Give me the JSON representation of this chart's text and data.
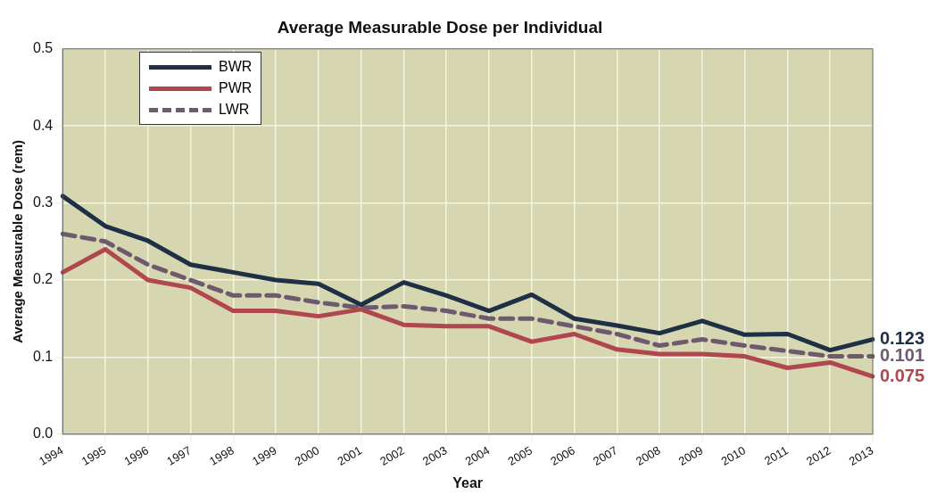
{
  "chart_data": {
    "type": "line",
    "title": "Average Measurable Dose per Individual",
    "xlabel": "Year",
    "ylabel": "Average Measurable Dose (rem)",
    "categories": [
      "1994",
      "1995",
      "1996",
      "1997",
      "1998",
      "1999",
      "2000",
      "2001",
      "2002",
      "2003",
      "2004",
      "2005",
      "2006",
      "2007",
      "2008",
      "2009",
      "2010",
      "2011",
      "2012",
      "2013"
    ],
    "series": [
      {
        "name": "BWR",
        "color": "#1f2f45",
        "values": [
          0.309,
          0.27,
          0.251,
          0.22,
          0.21,
          0.2,
          0.195,
          0.168,
          0.197,
          0.18,
          0.16,
          0.181,
          0.15,
          0.141,
          0.131,
          0.147,
          0.129,
          0.13,
          0.109,
          0.123
        ]
      },
      {
        "name": "PWR",
        "color": "#b0474e",
        "values": [
          0.21,
          0.24,
          0.2,
          0.19,
          0.16,
          0.16,
          0.153,
          0.162,
          0.142,
          0.14,
          0.14,
          0.12,
          0.13,
          0.11,
          0.104,
          0.104,
          0.101,
          0.086,
          0.093,
          0.075
        ]
      },
      {
        "name": "LWR",
        "color": "#6e5a6e",
        "line_style": "dashed",
        "values": [
          0.26,
          0.25,
          0.22,
          0.2,
          0.18,
          0.18,
          0.171,
          0.164,
          0.166,
          0.16,
          0.15,
          0.15,
          0.14,
          0.13,
          0.115,
          0.123,
          0.115,
          0.108,
          0.101,
          0.101
        ]
      }
    ],
    "ylim": [
      0,
      0.5
    ],
    "yticks": [
      {
        "value": 0,
        "label": "0.0"
      },
      0.1,
      0.2,
      0.3,
      0.4,
      0.5
    ],
    "grid": true,
    "legend": "top left",
    "marker": "none",
    "line_style": "solid",
    "annotations": [
      {
        "text": "0.123",
        "x": "2013",
        "y": 0.123
      },
      {
        "text": "0.075",
        "x": "2013",
        "y": 0.075
      },
      {
        "text": "0.101",
        "x": "2013",
        "y": 0.101
      }
    ]
  }
}
